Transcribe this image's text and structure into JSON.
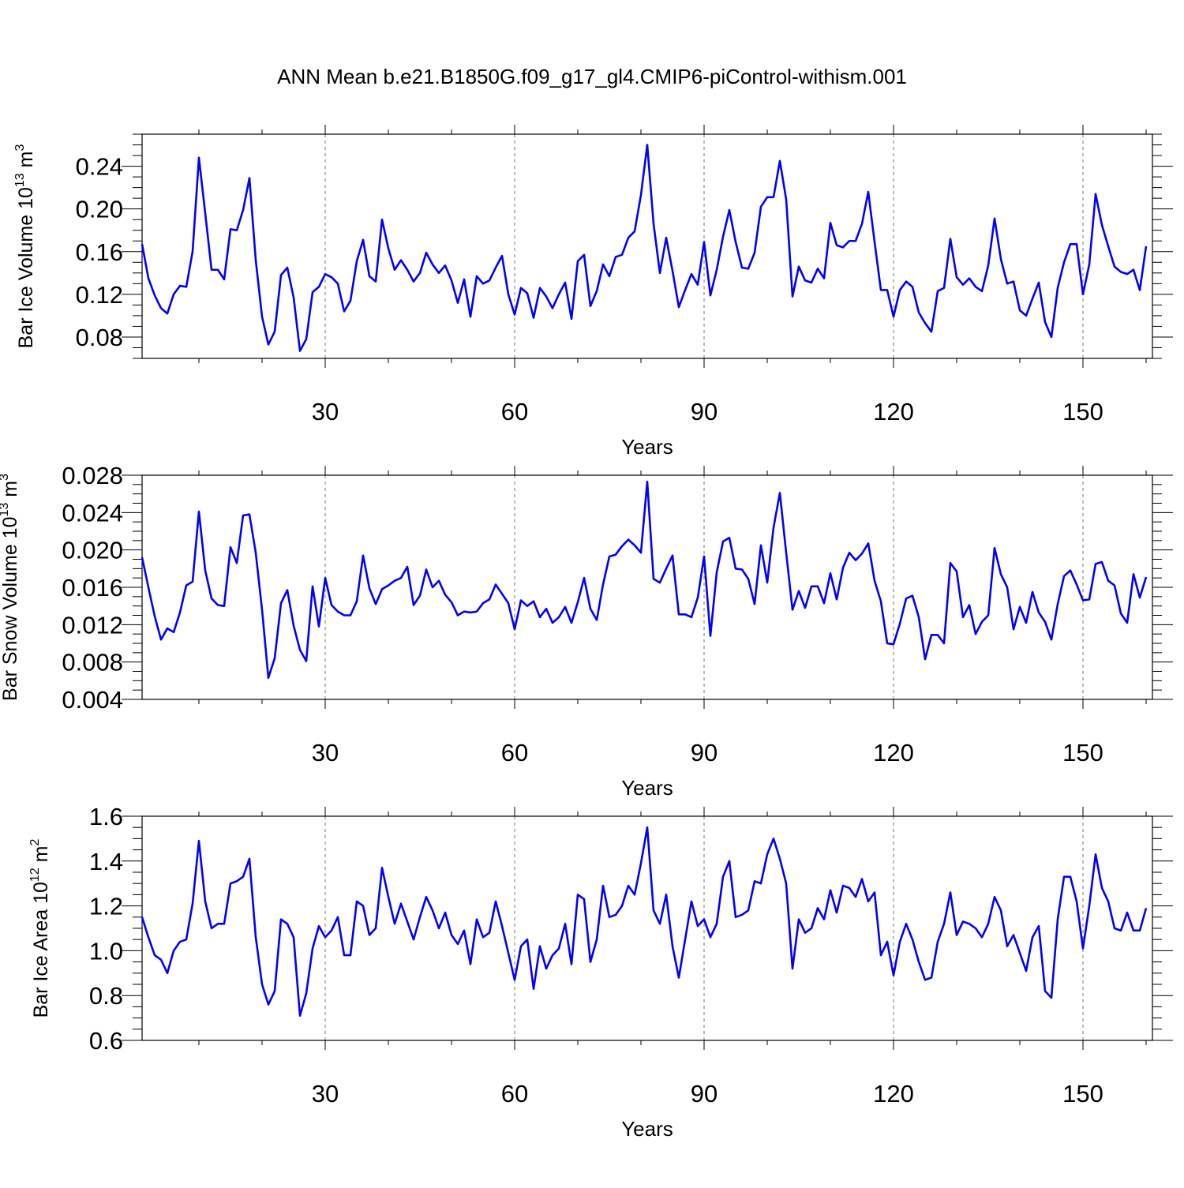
{
  "title": "ANN Mean b.e21.B1850G.f09_g17_gl4.CMIP6-piControl-withism.001",
  "chart_data": [
    {
      "type": "line",
      "ylabel": "Bar Ice Volume 10",
      "ylabel_exp": "13",
      "ylabel_unit": " m",
      "ylabel_unit_exp": "3",
      "xlabel": "Years",
      "xlim": [
        1,
        161
      ],
      "ylim": [
        0.06,
        0.27
      ],
      "x_ticks": [
        30,
        60,
        90,
        120,
        150
      ],
      "y_ticks": [
        0.08,
        0.12,
        0.16,
        0.2,
        0.24
      ],
      "y_tick_labels": [
        "0.08",
        "0.12",
        "0.16",
        "0.20",
        "0.24"
      ],
      "line_color": "#0000ff",
      "grid": "dashed vertical at x ticks",
      "values": [
        0.167,
        0.135,
        0.119,
        0.107,
        0.102,
        0.12,
        0.128,
        0.127,
        0.16,
        0.248,
        0.196,
        0.143,
        0.143,
        0.134,
        0.181,
        0.18,
        0.199,
        0.229,
        0.152,
        0.099,
        0.073,
        0.085,
        0.138,
        0.145,
        0.117,
        0.067,
        0.078,
        0.122,
        0.127,
        0.139,
        0.136,
        0.13,
        0.104,
        0.114,
        0.151,
        0.171,
        0.137,
        0.132,
        0.19,
        0.163,
        0.143,
        0.152,
        0.143,
        0.132,
        0.14,
        0.159,
        0.148,
        0.14,
        0.147,
        0.133,
        0.112,
        0.134,
        0.099,
        0.137,
        0.13,
        0.133,
        0.145,
        0.156,
        0.12,
        0.101,
        0.126,
        0.121,
        0.098,
        0.126,
        0.118,
        0.107,
        0.12,
        0.131,
        0.097,
        0.151,
        0.157,
        0.109,
        0.123,
        0.148,
        0.137,
        0.155,
        0.157,
        0.173,
        0.179,
        0.213,
        0.26,
        0.186,
        0.14,
        0.173,
        0.142,
        0.108,
        0.124,
        0.139,
        0.129,
        0.169,
        0.119,
        0.143,
        0.174,
        0.199,
        0.169,
        0.145,
        0.144,
        0.159,
        0.202,
        0.211,
        0.211,
        0.245,
        0.209,
        0.118,
        0.146,
        0.133,
        0.131,
        0.144,
        0.135,
        0.187,
        0.166,
        0.164,
        0.17,
        0.17,
        0.186,
        0.216,
        0.169,
        0.124,
        0.124,
        0.099,
        0.124,
        0.132,
        0.127,
        0.103,
        0.093,
        0.085,
        0.123,
        0.126,
        0.172,
        0.136,
        0.129,
        0.135,
        0.127,
        0.123,
        0.147,
        0.191,
        0.153,
        0.13,
        0.132,
        0.105,
        0.1,
        0.116,
        0.131,
        0.094,
        0.08,
        0.126,
        0.15,
        0.167,
        0.167,
        0.12,
        0.148,
        0.214,
        0.185,
        0.165,
        0.146,
        0.141,
        0.139,
        0.143,
        0.124,
        0.165
      ]
    },
    {
      "type": "line",
      "ylabel": "Bar Snow Volume 10",
      "ylabel_exp": "13",
      "ylabel_unit": " m",
      "ylabel_unit_exp": "3",
      "xlabel": "Years",
      "xlim": [
        1,
        161
      ],
      "ylim": [
        0.004,
        0.028
      ],
      "x_ticks": [
        30,
        60,
        90,
        120,
        150
      ],
      "y_ticks": [
        0.004,
        0.008,
        0.012,
        0.016,
        0.02,
        0.024,
        0.028
      ],
      "y_tick_labels": [
        "0.004",
        "0.008",
        "0.012",
        "0.016",
        "0.020",
        "0.024",
        "0.028"
      ],
      "line_color": "#0000ff",
      "grid": "dashed vertical at x ticks",
      "values": [
        0.0192,
        0.016,
        0.0129,
        0.0104,
        0.0116,
        0.0112,
        0.0133,
        0.0162,
        0.0166,
        0.0241,
        0.0178,
        0.0148,
        0.0141,
        0.014,
        0.0203,
        0.0186,
        0.0237,
        0.0238,
        0.0197,
        0.0136,
        0.0063,
        0.0084,
        0.0143,
        0.0157,
        0.0119,
        0.0093,
        0.0081,
        0.0161,
        0.0118,
        0.017,
        0.0141,
        0.0134,
        0.013,
        0.013,
        0.0145,
        0.0194,
        0.0159,
        0.0142,
        0.0158,
        0.0162,
        0.0167,
        0.017,
        0.0182,
        0.0141,
        0.0151,
        0.0179,
        0.016,
        0.0167,
        0.0152,
        0.0144,
        0.013,
        0.0134,
        0.0133,
        0.0134,
        0.0143,
        0.0147,
        0.0163,
        0.0153,
        0.0143,
        0.0115,
        0.0146,
        0.014,
        0.0145,
        0.0128,
        0.0137,
        0.0122,
        0.0128,
        0.0139,
        0.0122,
        0.0144,
        0.017,
        0.0137,
        0.0125,
        0.0163,
        0.0193,
        0.0195,
        0.0204,
        0.0211,
        0.0205,
        0.0197,
        0.0273,
        0.0169,
        0.0165,
        0.018,
        0.0194,
        0.0131,
        0.0131,
        0.0128,
        0.0149,
        0.0193,
        0.0108,
        0.0176,
        0.0209,
        0.0213,
        0.018,
        0.0179,
        0.0169,
        0.0142,
        0.0205,
        0.0165,
        0.0224,
        0.0261,
        0.0197,
        0.0136,
        0.0156,
        0.0138,
        0.0161,
        0.0161,
        0.0143,
        0.0175,
        0.0147,
        0.0181,
        0.0197,
        0.0189,
        0.0196,
        0.0207,
        0.0167,
        0.0145,
        0.01,
        0.0099,
        0.0121,
        0.0148,
        0.0151,
        0.0128,
        0.0083,
        0.0109,
        0.0109,
        0.01,
        0.0186,
        0.0177,
        0.0128,
        0.0141,
        0.011,
        0.0123,
        0.013,
        0.0202,
        0.0174,
        0.016,
        0.0115,
        0.0139,
        0.0122,
        0.0155,
        0.0133,
        0.0123,
        0.0104,
        0.0142,
        0.0172,
        0.0178,
        0.0163,
        0.0146,
        0.0147,
        0.0185,
        0.0187,
        0.0167,
        0.0162,
        0.0132,
        0.0122,
        0.0174,
        0.0149,
        0.0171
      ]
    },
    {
      "type": "line",
      "ylabel": "Bar Ice Area 10",
      "ylabel_exp": "12",
      "ylabel_unit": " m",
      "ylabel_unit_exp": "2",
      "xlabel": "Years",
      "xlim": [
        1,
        161
      ],
      "ylim": [
        0.6,
        1.6
      ],
      "x_ticks": [
        30,
        60,
        90,
        120,
        150
      ],
      "y_ticks": [
        0.6,
        0.8,
        1.0,
        1.2,
        1.4,
        1.6
      ],
      "y_tick_labels": [
        "0.6",
        "0.8",
        "1.0",
        "1.2",
        "1.4",
        "1.6"
      ],
      "line_color": "#0000ff",
      "grid": "dashed vertical at x ticks",
      "values": [
        1.15,
        1.06,
        0.98,
        0.96,
        0.9,
        1.0,
        1.04,
        1.05,
        1.21,
        1.49,
        1.22,
        1.1,
        1.12,
        1.12,
        1.3,
        1.31,
        1.33,
        1.41,
        1.06,
        0.85,
        0.76,
        0.82,
        1.14,
        1.12,
        1.06,
        0.71,
        0.81,
        1.01,
        1.11,
        1.06,
        1.09,
        1.15,
        0.98,
        0.98,
        1.22,
        1.2,
        1.07,
        1.1,
        1.37,
        1.24,
        1.12,
        1.21,
        1.13,
        1.05,
        1.15,
        1.24,
        1.18,
        1.1,
        1.17,
        1.07,
        1.03,
        1.09,
        0.94,
        1.14,
        1.06,
        1.08,
        1.22,
        1.11,
        0.99,
        0.87,
        1.02,
        1.05,
        0.83,
        1.02,
        0.92,
        0.98,
        1.01,
        1.12,
        0.94,
        1.25,
        1.23,
        0.95,
        1.05,
        1.29,
        1.15,
        1.16,
        1.2,
        1.29,
        1.25,
        1.39,
        1.55,
        1.18,
        1.12,
        1.25,
        1.02,
        0.88,
        1.05,
        1.22,
        1.11,
        1.14,
        1.06,
        1.12,
        1.33,
        1.4,
        1.15,
        1.16,
        1.18,
        1.31,
        1.3,
        1.43,
        1.5,
        1.41,
        1.3,
        0.92,
        1.14,
        1.08,
        1.1,
        1.19,
        1.14,
        1.27,
        1.17,
        1.29,
        1.28,
        1.24,
        1.32,
        1.22,
        1.26,
        0.98,
        1.04,
        0.89,
        1.04,
        1.12,
        1.05,
        0.95,
        0.87,
        0.88,
        1.04,
        1.12,
        1.26,
        1.07,
        1.13,
        1.12,
        1.1,
        1.06,
        1.12,
        1.24,
        1.18,
        1.02,
        1.07,
        0.99,
        0.91,
        1.06,
        1.11,
        0.82,
        0.79,
        1.14,
        1.33,
        1.33,
        1.22,
        1.01,
        1.2,
        1.43,
        1.28,
        1.22,
        1.1,
        1.09,
        1.17,
        1.09,
        1.09,
        1.19
      ]
    }
  ]
}
